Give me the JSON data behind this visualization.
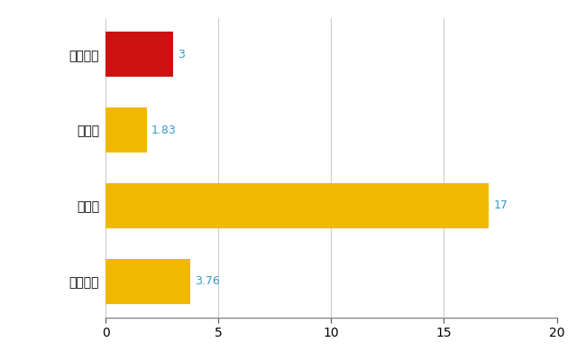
{
  "categories": [
    "駒ヶ根市",
    "県平均",
    "県最大",
    "全国平均"
  ],
  "values": [
    3,
    1.83,
    17,
    3.76
  ],
  "bar_colors": [
    "#cc1111",
    "#f0b800",
    "#f0b800",
    "#f0b800"
  ],
  "value_labels": [
    "3",
    "1.83",
    "17",
    "3.76"
  ],
  "value_label_color": "#3399cc",
  "xlim": [
    0,
    20
  ],
  "xticks": [
    0,
    5,
    10,
    15,
    20
  ],
  "grid_color": "#cccccc",
  "bg_color": "#ffffff",
  "figsize": [
    6.5,
    4.0
  ],
  "dpi": 100,
  "bar_height": 0.6
}
